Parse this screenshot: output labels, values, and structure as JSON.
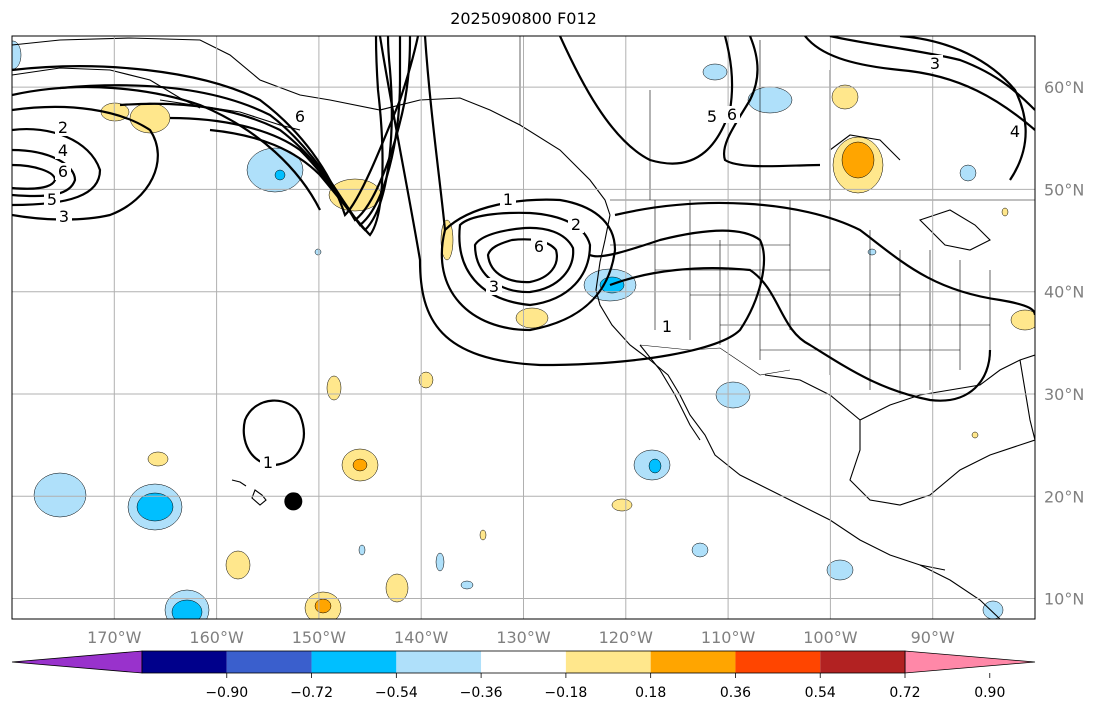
{
  "title": "2025090800 F012",
  "map": {
    "projection": "equirectangular",
    "lon_range": [
      -180,
      -80
    ],
    "lat_range": [
      8,
      65
    ],
    "grid": true,
    "lon_ticks": [
      "170°W",
      "160°W",
      "150°W",
      "140°W",
      "130°W",
      "120°W",
      "110°W",
      "100°W",
      "90°W"
    ],
    "lat_ticks": [
      "60°N",
      "50°N",
      "40°N",
      "30°N",
      "20°N",
      "10°N"
    ],
    "contour_labels": [
      "2",
      "4",
      "6",
      "5",
      "3",
      "6",
      "3",
      "4",
      "5",
      "6",
      "1",
      "2",
      "6",
      "3",
      "1",
      "1"
    ],
    "marker": {
      "lon": -152.5,
      "lat": 19.5
    }
  },
  "colorbar": {
    "ticks": [
      "−0.90",
      "−0.72",
      "−0.54",
      "−0.36",
      "−0.18",
      "0.18",
      "0.36",
      "0.54",
      "0.72",
      "0.90"
    ],
    "colors": [
      "#9932cc",
      "#00008b",
      "#3a5fcd",
      "#00bfff",
      "#afe0fa",
      "#ffffff",
      "#ffe78c",
      "#ffa500",
      "#ff4500",
      "#b22222",
      "#ff88a8"
    ]
  }
}
